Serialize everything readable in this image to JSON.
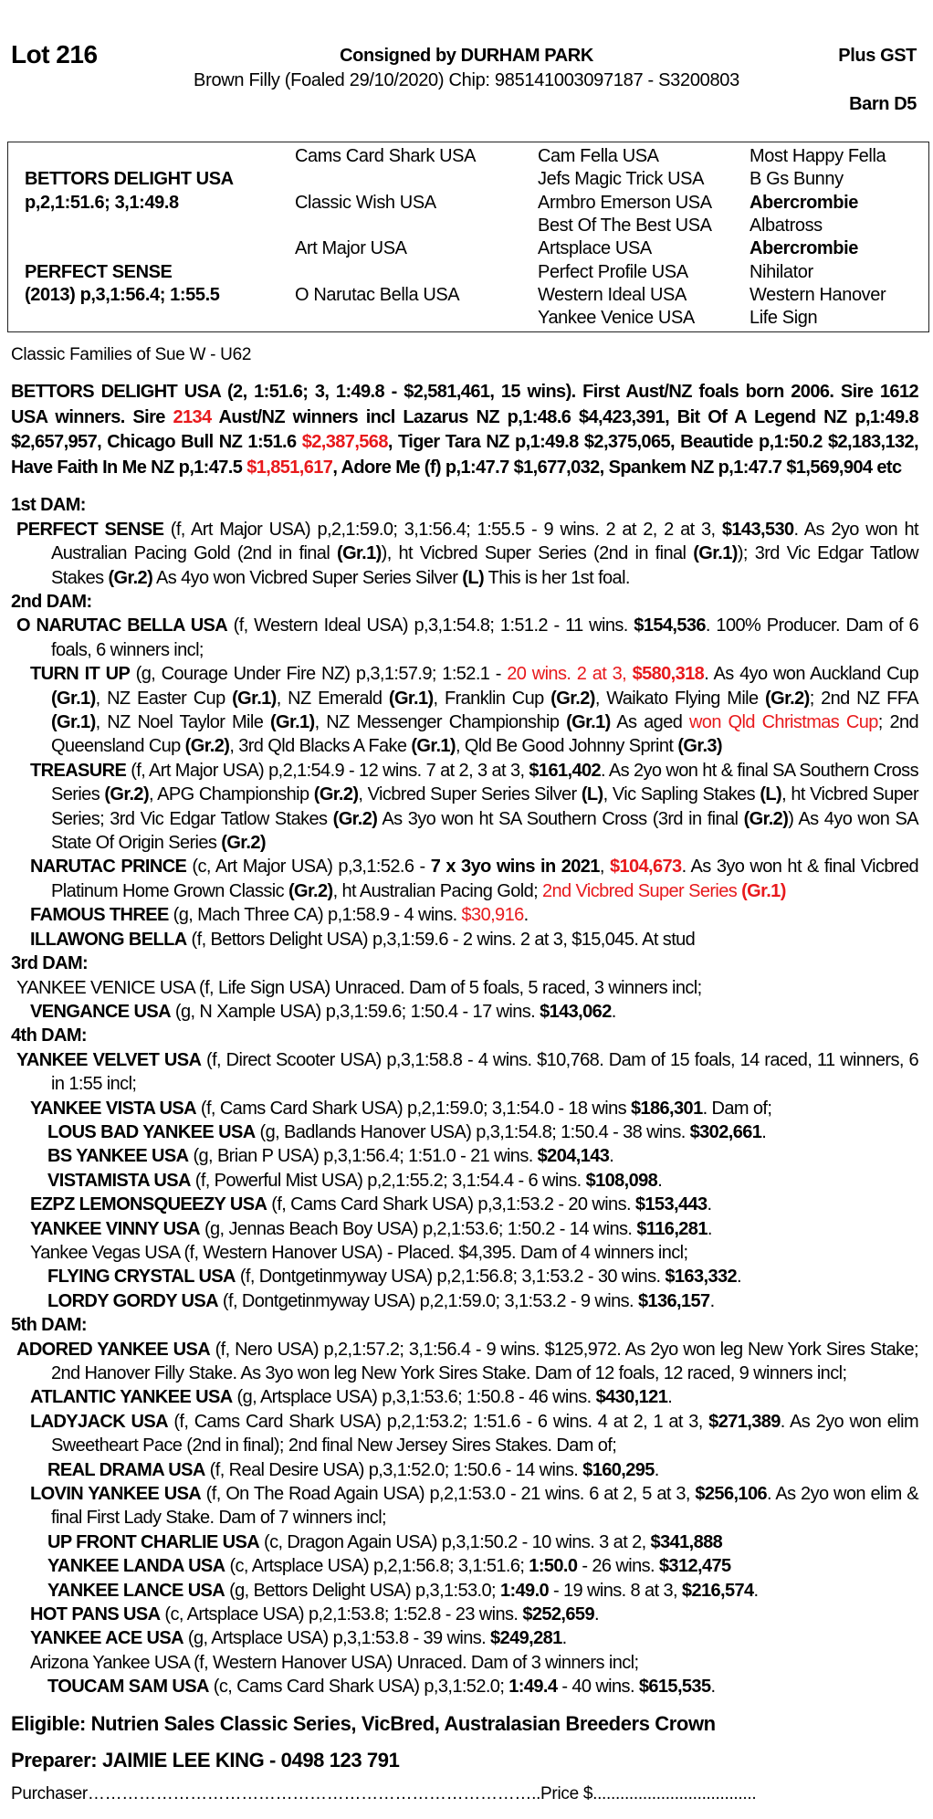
{
  "header": {
    "lot": "Lot 216",
    "consigned": "Consigned by DURHAM PARK",
    "gst": "Plus GST",
    "description": "Brown Filly (Foaled 29/10/2020) Chip: 985141003097187 - S3200803",
    "barn": "Barn D5"
  },
  "pedigree": [
    [
      {
        "t": ""
      },
      {
        "t": "Cams Card Shark USA"
      },
      {
        "t": "Cam Fella USA"
      },
      {
        "t": "Most Happy Fella"
      }
    ],
    [
      {
        "t": "BETTORS DELIGHT USA",
        "b": true
      },
      {
        "t": ""
      },
      {
        "t": "Jefs Magic Trick USA"
      },
      {
        "t": "B Gs Bunny"
      }
    ],
    [
      {
        "t": "p,2,1:51.6; 3,1:49.8",
        "b": true
      },
      {
        "t": "Classic Wish USA"
      },
      {
        "t": "Armbro Emerson USA"
      },
      {
        "t": "Abercrombie",
        "b": true
      }
    ],
    [
      {
        "t": ""
      },
      {
        "t": ""
      },
      {
        "t": "Best Of The Best USA"
      },
      {
        "t": "Albatross"
      }
    ],
    [
      {
        "t": ""
      },
      {
        "t": "Art Major USA"
      },
      {
        "t": "Artsplace USA"
      },
      {
        "t": "Abercrombie",
        "b": true
      }
    ],
    [
      {
        "t": "PERFECT SENSE",
        "b": true
      },
      {
        "t": ""
      },
      {
        "t": "Perfect Profile USA"
      },
      {
        "t": "Nihilator"
      }
    ],
    [
      {
        "t": "(2013) p,3,1:56.4; 1:55.5",
        "b": true
      },
      {
        "t": "O Narutac Bella USA"
      },
      {
        "t": "Western Ideal USA"
      },
      {
        "t": "Western Hanover"
      }
    ],
    [
      {
        "t": ""
      },
      {
        "t": ""
      },
      {
        "t": "Yankee Venice USA"
      },
      {
        "t": "Life Sign"
      }
    ]
  ],
  "families": "Classic Families of Sue W - U62",
  "notes": [
    {
      "k": "sire",
      "segs": [
        [
          "BETTORS DELIGHT USA (2, 1:51.6; 3, 1:49.8 - $2,581,461, 15 wins). First Aust/NZ foals born 2006. Sire 1612 USA winners. Sire ",
          ""
        ],
        [
          "2134",
          "r"
        ],
        [
          " Aust/NZ winners incl Lazarus NZ p,1:48.6 $4,423,391, Bit Of A Legend NZ p,1:49.8 $2,657,957, Chicago Bull NZ 1:51.6 ",
          ""
        ],
        [
          "$2,387,568",
          "r"
        ],
        [
          ", Tiger Tara NZ p,1:49.8 $2,375,065, Beautide p,1:50.2 $2,183,132, Have Faith In Me NZ p,1:47.5 ",
          ""
        ],
        [
          "$1,851,617",
          "r"
        ],
        [
          ", Adore Me (f) p,1:47.7 $1,677,032, Spankem NZ p,1:47.7 $1,569,904 etc",
          ""
        ]
      ]
    },
    {
      "k": "hdr",
      "segs": [
        [
          "1st DAM:",
          ""
        ]
      ]
    },
    {
      "k": "l1",
      "segs": [
        [
          "PERFECT SENSE",
          "b"
        ],
        [
          " (f, Art Major USA) p,2,1:59.0; 3,1:56.4; 1:55.5 - 9 wins. 2 at 2, 2 at 3, ",
          ""
        ],
        [
          "$143,530",
          "b"
        ],
        [
          ". As 2yo won ht Australian Pacing Gold (2nd in final ",
          ""
        ],
        [
          "(Gr.1)",
          "b"
        ],
        [
          "), ht Vicbred Super Series (2nd in final ",
          ""
        ],
        [
          "(Gr.1)",
          "b"
        ],
        [
          "); 3rd Vic Edgar Tatlow Stakes ",
          ""
        ],
        [
          "(Gr.2)",
          "b"
        ],
        [
          " As 4yo won Vicbred Super Series Silver ",
          ""
        ],
        [
          "(L)",
          "b"
        ],
        [
          " This is her 1st foal.",
          ""
        ]
      ]
    },
    {
      "k": "hdr",
      "segs": [
        [
          "2nd DAM:",
          ""
        ]
      ]
    },
    {
      "k": "l1",
      "segs": [
        [
          "O NARUTAC BELLA USA",
          "b"
        ],
        [
          " (f, Western Ideal USA) p,3,1:54.8; 1:51.2 - 11 wins. ",
          ""
        ],
        [
          "$154,536",
          "b"
        ],
        [
          ". 100% Producer. Dam of 6 foals, 6 winners incl;",
          ""
        ]
      ]
    },
    {
      "k": "l2",
      "segs": [
        [
          "TURN IT UP",
          "b"
        ],
        [
          " (g, Courage Under Fire NZ) p,3,1:57.9; 1:52.1 - ",
          ""
        ],
        [
          "20 wins. 2 at 3, ",
          "r"
        ],
        [
          "$580,318",
          "rb"
        ],
        [
          ". As 4yo won Auckland Cup ",
          ""
        ],
        [
          "(Gr.1)",
          "b"
        ],
        [
          ", NZ Easter Cup ",
          ""
        ],
        [
          "(Gr.1)",
          "b"
        ],
        [
          ", NZ Emerald ",
          ""
        ],
        [
          "(Gr.1)",
          "b"
        ],
        [
          ", Franklin Cup ",
          ""
        ],
        [
          "(Gr.2)",
          "b"
        ],
        [
          ", Waikato Flying Mile ",
          ""
        ],
        [
          "(Gr.2)",
          "b"
        ],
        [
          "; 2nd NZ FFA ",
          ""
        ],
        [
          "(Gr.1)",
          "b"
        ],
        [
          ", NZ Noel Taylor Mile ",
          ""
        ],
        [
          "(Gr.1)",
          "b"
        ],
        [
          ", NZ Messenger Championship ",
          ""
        ],
        [
          "(Gr.1)",
          "b"
        ],
        [
          " As aged ",
          ""
        ],
        [
          "won Qld Christmas Cup",
          "r"
        ],
        [
          "; 2nd Queensland Cup ",
          ""
        ],
        [
          "(Gr.2)",
          "b"
        ],
        [
          ",  3rd Qld Blacks A Fake ",
          ""
        ],
        [
          "(Gr.1)",
          "b"
        ],
        [
          ", Qld Be Good Johnny Sprint ",
          ""
        ],
        [
          "(Gr.3)",
          "b"
        ]
      ]
    },
    {
      "k": "l2",
      "segs": [
        [
          "TREASURE",
          "b"
        ],
        [
          " (f, Art Major USA) p,2,1:54.9 - 12 wins. 7 at 2, 3 at 3, ",
          ""
        ],
        [
          "$161,402",
          "b"
        ],
        [
          ". As 2yo won ht & final SA Southern Cross Series ",
          ""
        ],
        [
          "(Gr.2)",
          "b"
        ],
        [
          ", APG Championship ",
          ""
        ],
        [
          "(Gr.2)",
          "b"
        ],
        [
          ", Vicbred Super Series Silver ",
          ""
        ],
        [
          "(L)",
          "b"
        ],
        [
          ", Vic Sapling Stakes ",
          ""
        ],
        [
          "(L)",
          "b"
        ],
        [
          ", ht Vicbred Super Series; 3rd Vic Edgar Tatlow Stakes ",
          ""
        ],
        [
          "(Gr.2)",
          "b"
        ],
        [
          " As 3yo won ht SA Southern Cross (3rd in final ",
          ""
        ],
        [
          "(Gr.2)",
          "b"
        ],
        [
          ") As 4yo won SA State Of Origin Series ",
          ""
        ],
        [
          "(Gr.2)",
          "b"
        ]
      ]
    },
    {
      "k": "l2",
      "segs": [
        [
          "NARUTAC PRINCE",
          "b"
        ],
        [
          " (c, Art Major USA) p,3,1:52.6 - ",
          ""
        ],
        [
          "7 x 3yo wins in 2021",
          "b"
        ],
        [
          ", ",
          ""
        ],
        [
          "$104,673",
          "rb"
        ],
        [
          ". As 3yo won ht & final Vicbred Platinum Home Grown Classic ",
          ""
        ],
        [
          "(Gr.2)",
          "b"
        ],
        [
          ", ht Australian Pacing Gold; ",
          ""
        ],
        [
          "2nd Vicbred Super Series ",
          "r"
        ],
        [
          "(Gr.1)",
          "rb"
        ]
      ]
    },
    {
      "k": "l2",
      "segs": [
        [
          "FAMOUS THREE",
          "b"
        ],
        [
          " (g, Mach Three CA) p,1:58.9 - 4 wins. ",
          ""
        ],
        [
          "$30,916",
          "r"
        ],
        [
          ".",
          ""
        ]
      ]
    },
    {
      "k": "l2",
      "segs": [
        [
          "ILLAWONG BELLA",
          "b"
        ],
        [
          " (f, Bettors Delight USA) p,3,1:59.6 - 2 wins. 2 at 3, $15,045. At stud",
          ""
        ]
      ]
    },
    {
      "k": "hdr",
      "segs": [
        [
          "3rd DAM:",
          ""
        ]
      ]
    },
    {
      "k": "l1",
      "segs": [
        [
          "YANKEE VENICE USA (f, Life Sign USA) Unraced. Dam of 5 foals, 5 raced, 3 winners incl;",
          ""
        ]
      ]
    },
    {
      "k": "l2",
      "segs": [
        [
          "VENGANCE USA",
          "b"
        ],
        [
          " (g, N Xample USA) p,3,1:59.6; 1:50.4 - 17 wins. ",
          ""
        ],
        [
          "$143,062",
          "b"
        ],
        [
          ".",
          ""
        ]
      ]
    },
    {
      "k": "hdr",
      "segs": [
        [
          "4th DAM:",
          ""
        ]
      ]
    },
    {
      "k": "l1",
      "segs": [
        [
          "YANKEE VELVET USA",
          "b"
        ],
        [
          " (f, Direct Scooter USA) p,3,1:58.8 - 4 wins. $10,768. Dam of 15 foals, 14 raced, 11 winners, 6 in 1:55 incl;",
          ""
        ]
      ]
    },
    {
      "k": "l2",
      "segs": [
        [
          "YANKEE VISTA USA",
          "b"
        ],
        [
          " (f, Cams Card Shark USA) p,2,1:59.0; 3,1:54.0 - 18 wins ",
          ""
        ],
        [
          "$186,301",
          "b"
        ],
        [
          ". Dam of;",
          ""
        ]
      ]
    },
    {
      "k": "l3",
      "segs": [
        [
          "LOUS BAD YANKEE USA",
          "b"
        ],
        [
          " (g, Badlands Hanover USA) p,3,1:54.8; 1:50.4 - 38 wins. ",
          ""
        ],
        [
          "$302,661",
          "b"
        ],
        [
          ".",
          ""
        ]
      ]
    },
    {
      "k": "l3",
      "segs": [
        [
          "BS YANKEE USA",
          "b"
        ],
        [
          " (g, Brian P USA) p,3,1:56.4; 1:51.0 - 21 wins. ",
          ""
        ],
        [
          "$204,143",
          "b"
        ],
        [
          ".",
          ""
        ]
      ]
    },
    {
      "k": "l3",
      "segs": [
        [
          "VISTAMISTA USA",
          "b"
        ],
        [
          " (f, Powerful Mist USA) p,2,1:55.2; 3,1:54.4 - 6 wins. ",
          ""
        ],
        [
          "$108,098",
          "b"
        ],
        [
          ".",
          ""
        ]
      ]
    },
    {
      "k": "l2",
      "segs": [
        [
          "EZPZ LEMONSQUEEZY USA",
          "b"
        ],
        [
          " (f, Cams Card Shark USA) p,3,1:53.2 - 20 wins. ",
          ""
        ],
        [
          "$153,443",
          "b"
        ],
        [
          ".",
          ""
        ]
      ]
    },
    {
      "k": "l2",
      "segs": [
        [
          "YANKEE VINNY USA",
          "b"
        ],
        [
          " (g, Jennas Beach Boy USA) p,2,1:53.6; 1:50.2 - 14 wins. ",
          ""
        ],
        [
          "$116,281",
          "b"
        ],
        [
          ".",
          ""
        ]
      ]
    },
    {
      "k": "l2",
      "segs": [
        [
          "Yankee Vegas USA (f, Western Hanover USA) - Placed. $4,395. Dam of 4 winners incl;",
          ""
        ]
      ]
    },
    {
      "k": "l3",
      "segs": [
        [
          "FLYING CRYSTAL USA",
          "b"
        ],
        [
          " (f, Dontgetinmyway USA) p,2,1:56.8; 3,1:53.2 - 30 wins. ",
          ""
        ],
        [
          "$163,332",
          "b"
        ],
        [
          ".",
          ""
        ]
      ]
    },
    {
      "k": "l3",
      "segs": [
        [
          "LORDY GORDY USA",
          "b"
        ],
        [
          " (f, Dontgetinmyway USA) p,2,1:59.0; 3,1:53.2 - 9 wins. ",
          ""
        ],
        [
          "$136,157",
          "b"
        ],
        [
          ".",
          ""
        ]
      ]
    },
    {
      "k": "hdr",
      "segs": [
        [
          "5th DAM:",
          ""
        ]
      ]
    },
    {
      "k": "l1",
      "segs": [
        [
          "ADORED YANKEE USA",
          "b"
        ],
        [
          " (f, Nero USA) p,2,1:57.2; 3,1:56.4 - 9 wins. $125,972. As 2yo won leg New York Sires Stake; 2nd Hanover Filly Stake. As 3yo won leg New York Sires Stake. Dam of 12 foals, 12 raced, 9 winners incl;",
          ""
        ]
      ]
    },
    {
      "k": "l2",
      "segs": [
        [
          "ATLANTIC YANKEE USA",
          "b"
        ],
        [
          " (g, Artsplace USA) p,3,1:53.6; 1:50.8 - 46 wins. ",
          ""
        ],
        [
          "$430,121",
          "b"
        ],
        [
          ".",
          ""
        ]
      ]
    },
    {
      "k": "l2",
      "segs": [
        [
          "LADYJACK USA",
          "b"
        ],
        [
          " (f, Cams Card Shark USA) p,2,1:53.2; 1:51.6 - 6 wins. 4 at 2, 1 at 3, ",
          ""
        ],
        [
          "$271,389",
          "b"
        ],
        [
          ". As 2yo won elim Sweetheart Pace (2nd in final); 2nd final New Jersey Sires Stakes. Dam of;",
          ""
        ]
      ]
    },
    {
      "k": "l3",
      "segs": [
        [
          "REAL DRAMA USA",
          "b"
        ],
        [
          " (f, Real Desire USA) p,3,1:52.0; 1:50.6 - 14 wins. ",
          ""
        ],
        [
          "$160,295",
          "b"
        ],
        [
          ".",
          ""
        ]
      ]
    },
    {
      "k": "l2",
      "segs": [
        [
          "LOVIN YANKEE USA",
          "b"
        ],
        [
          " (f, On The Road Again USA) p,2,1:53.0 - 21 wins. 6 at 2, 5 at 3, ",
          ""
        ],
        [
          "$256,106",
          "b"
        ],
        [
          ". As 2yo won elim & final First Lady Stake. Dam of 7 winners incl;",
          ""
        ]
      ]
    },
    {
      "k": "l3",
      "segs": [
        [
          "UP FRONT CHARLIE USA",
          "b"
        ],
        [
          " (c, Dragon Again USA) p,3,1:50.2 - 10 wins. 3 at 2, ",
          ""
        ],
        [
          "$341,888",
          "b"
        ]
      ]
    },
    {
      "k": "l3",
      "segs": [
        [
          "YANKEE LANDA USA",
          "b"
        ],
        [
          " (c, Artsplace USA) p,2,1:56.8; 3,1:51.6; ",
          ""
        ],
        [
          "1:50.0",
          "b"
        ],
        [
          " - 26 wins. ",
          ""
        ],
        [
          "$312,475",
          "b"
        ]
      ]
    },
    {
      "k": "l3",
      "segs": [
        [
          "YANKEE LANCE USA",
          "b"
        ],
        [
          " (g, Bettors Delight USA) p,3,1:53.0; ",
          ""
        ],
        [
          "1:49.0",
          "b"
        ],
        [
          " - 19 wins. 8 at 3, ",
          ""
        ],
        [
          "$216,574",
          "b"
        ],
        [
          ".",
          ""
        ]
      ]
    },
    {
      "k": "l2",
      "segs": [
        [
          "HOT PANS USA",
          "b"
        ],
        [
          " (c, Artsplace USA) p,2,1:53.8; 1:52.8 - 23 wins. ",
          ""
        ],
        [
          "$252,659",
          "b"
        ],
        [
          ".",
          ""
        ]
      ]
    },
    {
      "k": "l2",
      "segs": [
        [
          "YANKEE ACE USA",
          "b"
        ],
        [
          " (g, Artsplace USA) p,3,1:53.8 - 39 wins. ",
          ""
        ],
        [
          "$249,281",
          "b"
        ],
        [
          ".",
          ""
        ]
      ]
    },
    {
      "k": "l2",
      "segs": [
        [
          "Arizona Yankee USA (f, Western Hanover USA) Unraced. Dam of 3 winners incl;",
          ""
        ]
      ]
    },
    {
      "k": "l3",
      "segs": [
        [
          "TOUCAM SAM USA",
          "b"
        ],
        [
          " (c, Cams Card Shark USA) p,3,1:52.0; ",
          ""
        ],
        [
          "1:49.4",
          "b"
        ],
        [
          " - 40 wins. ",
          ""
        ],
        [
          "$615,535",
          "b"
        ],
        [
          ".",
          ""
        ]
      ]
    }
  ],
  "footer": {
    "eligible": "Eligible: Nutrien Sales Classic Series, VicBred, Australasian Breeders Crown",
    "preparer": "Preparer: JAIMIE LEE KING - 0498 123 791",
    "purchaser": "Purchaser……………………………………………………………………..Price $...................................."
  },
  "colors": {
    "highlight": "#e8191c",
    "text": "#000000"
  }
}
